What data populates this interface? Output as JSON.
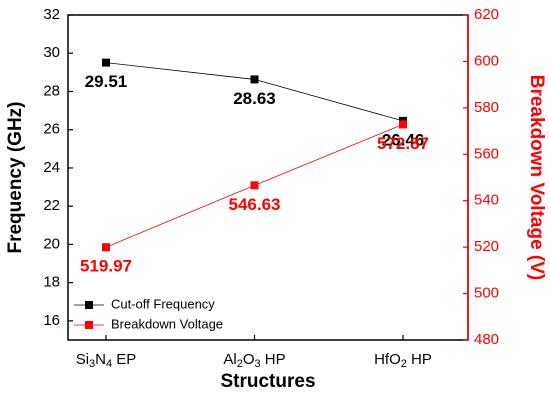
{
  "chart_data": {
    "type": "line",
    "x_label": "Structures",
    "y_label": "Frequency (GHz)",
    "y2_label": "Breakdown Voltage (V)",
    "categories": [
      "Si3N4 EP",
      "Al2O3 HP",
      "HfO2 HP"
    ],
    "series": [
      {
        "name": "Cut-off Frequency",
        "color": "#000000",
        "values": [
          29.51,
          28.63,
          26.46
        ]
      },
      {
        "name": "Breakdown Voltage",
        "color": "#ff0000",
        "axis": "y2",
        "values": [
          519.97,
          546.63,
          572.87
        ]
      }
    ],
    "ylim": [
      15,
      32
    ],
    "yticks": [
      16,
      18,
      20,
      22,
      24,
      26,
      28,
      30,
      32
    ],
    "y2lim": [
      480,
      620
    ],
    "y2ticks": [
      480,
      500,
      520,
      540,
      560,
      580,
      600,
      620
    ],
    "y2_color": "#ff0000",
    "legend": "lower left"
  }
}
